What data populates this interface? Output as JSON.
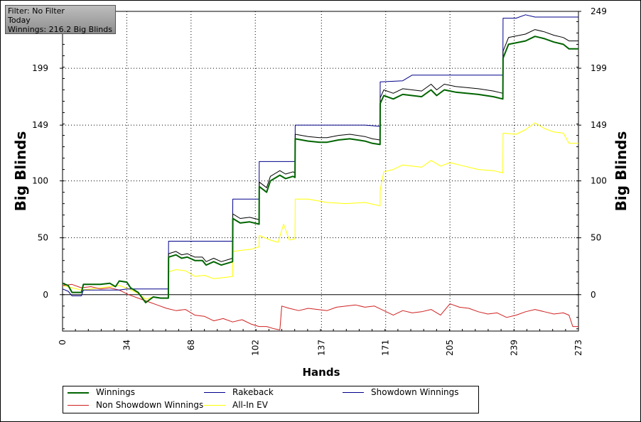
{
  "info_box": {
    "lines": [
      "Filter: No Filter",
      "Today",
      "Winnings: 216.2 Big Blinds"
    ]
  },
  "colors": {
    "winnings": "#006400",
    "rakeback": "#000000",
    "showdown": "#00008b",
    "non_showdown": "#d02020",
    "allin_ev": "#ffff00"
  },
  "chart_data": {
    "type": "line",
    "xlabel": "Hands",
    "ylabel": "Big Blinds",
    "ylabel_right": "Big Blinds",
    "xlim": [
      0,
      273
    ],
    "ylim": [
      -32,
      249
    ],
    "x_ticks": [
      0,
      34,
      68,
      102,
      137,
      171,
      205,
      239,
      273
    ],
    "y_ticks": [
      0,
      50,
      100,
      149,
      199,
      249
    ],
    "grid": true,
    "legend_position": "bottom",
    "series": [
      {
        "name": "Winnings",
        "color_key": "winnings",
        "points": [
          [
            0,
            10
          ],
          [
            3,
            8
          ],
          [
            5,
            2
          ],
          [
            10,
            2
          ],
          [
            11,
            9
          ],
          [
            20,
            9
          ],
          [
            25,
            10
          ],
          [
            28,
            7
          ],
          [
            30,
            12
          ],
          [
            34,
            11
          ],
          [
            36,
            6
          ],
          [
            40,
            2
          ],
          [
            44,
            -7
          ],
          [
            48,
            -2
          ],
          [
            52,
            -3
          ],
          [
            56,
            -3
          ],
          [
            56.1,
            33
          ],
          [
            60,
            35
          ],
          [
            63,
            32
          ],
          [
            66,
            33
          ],
          [
            70,
            30
          ],
          [
            74,
            30
          ],
          [
            76,
            26
          ],
          [
            80,
            29
          ],
          [
            84,
            26
          ],
          [
            88,
            28
          ],
          [
            90,
            29
          ],
          [
            90.1,
            67
          ],
          [
            94,
            63
          ],
          [
            99,
            64
          ],
          [
            104,
            62
          ],
          [
            104.1,
            95
          ],
          [
            108,
            90
          ],
          [
            110,
            100
          ],
          [
            115,
            105
          ],
          [
            118,
            102
          ],
          [
            122,
            104
          ],
          [
            123,
            103
          ],
          [
            123.1,
            137
          ],
          [
            130,
            135
          ],
          [
            136,
            134
          ],
          [
            140,
            134
          ],
          [
            146,
            136
          ],
          [
            152,
            137
          ],
          [
            160,
            135
          ],
          [
            164,
            133
          ],
          [
            168,
            132
          ],
          [
            168.1,
            168
          ],
          [
            170,
            175
          ],
          [
            175,
            172
          ],
          [
            180,
            176
          ],
          [
            190,
            174
          ],
          [
            195,
            180
          ],
          [
            198,
            175
          ],
          [
            202,
            180
          ],
          [
            208,
            178
          ],
          [
            220,
            176
          ],
          [
            228,
            174
          ],
          [
            233,
            172
          ],
          [
            233.1,
            208
          ],
          [
            236,
            220
          ],
          [
            245,
            223
          ],
          [
            250,
            227
          ],
          [
            255,
            225
          ],
          [
            260,
            222
          ],
          [
            265,
            220
          ],
          [
            268,
            216
          ],
          [
            273,
            216
          ]
        ]
      },
      {
        "name": "Rakeback",
        "color_key": "rakeback",
        "points": [
          [
            0,
            10
          ],
          [
            3,
            8
          ],
          [
            5,
            2
          ],
          [
            10,
            2
          ],
          [
            11,
            9
          ],
          [
            20,
            9
          ],
          [
            25,
            10
          ],
          [
            28,
            7
          ],
          [
            30,
            12
          ],
          [
            34,
            11
          ],
          [
            36,
            6
          ],
          [
            40,
            2
          ],
          [
            44,
            -7
          ],
          [
            48,
            -2
          ],
          [
            52,
            -3
          ],
          [
            56,
            -3
          ],
          [
            56.1,
            36
          ],
          [
            60,
            38
          ],
          [
            63,
            35
          ],
          [
            66,
            36
          ],
          [
            70,
            33
          ],
          [
            74,
            33
          ],
          [
            76,
            29
          ],
          [
            80,
            32
          ],
          [
            84,
            29
          ],
          [
            88,
            31
          ],
          [
            90,
            32
          ],
          [
            90.1,
            71
          ],
          [
            94,
            67
          ],
          [
            99,
            68
          ],
          [
            104,
            66
          ],
          [
            104.1,
            99
          ],
          [
            108,
            94
          ],
          [
            110,
            104
          ],
          [
            115,
            109
          ],
          [
            118,
            106
          ],
          [
            122,
            108
          ],
          [
            123,
            107
          ],
          [
            123.1,
            141
          ],
          [
            130,
            139
          ],
          [
            136,
            138
          ],
          [
            140,
            138
          ],
          [
            146,
            140
          ],
          [
            152,
            141
          ],
          [
            160,
            139
          ],
          [
            164,
            137
          ],
          [
            168,
            136
          ],
          [
            168.1,
            173
          ],
          [
            170,
            180
          ],
          [
            175,
            177
          ],
          [
            180,
            181
          ],
          [
            190,
            179
          ],
          [
            195,
            185
          ],
          [
            198,
            180
          ],
          [
            202,
            185
          ],
          [
            208,
            183
          ],
          [
            220,
            181
          ],
          [
            228,
            179
          ],
          [
            233,
            177
          ],
          [
            233.1,
            214
          ],
          [
            236,
            226
          ],
          [
            245,
            229
          ],
          [
            250,
            233
          ],
          [
            255,
            231
          ],
          [
            260,
            228
          ],
          [
            265,
            226
          ],
          [
            268,
            223
          ],
          [
            273,
            223
          ]
        ]
      },
      {
        "name": "Showdown Winnings",
        "color_key": "showdown",
        "points": [
          [
            0,
            5
          ],
          [
            3,
            3
          ],
          [
            5,
            -1
          ],
          [
            10,
            -1
          ],
          [
            11,
            4
          ],
          [
            20,
            4
          ],
          [
            30,
            4
          ],
          [
            34,
            5
          ],
          [
            56,
            5
          ],
          [
            56.1,
            47
          ],
          [
            90,
            47
          ],
          [
            90.1,
            84
          ],
          [
            104,
            84
          ],
          [
            104.1,
            117
          ],
          [
            123,
            117
          ],
          [
            123.1,
            149
          ],
          [
            160,
            149
          ],
          [
            168,
            148
          ],
          [
            168.1,
            187
          ],
          [
            180,
            188
          ],
          [
            185,
            193
          ],
          [
            233,
            193
          ],
          [
            233.1,
            243
          ],
          [
            240,
            243
          ],
          [
            245,
            246
          ],
          [
            250,
            244
          ],
          [
            273,
            244
          ]
        ]
      },
      {
        "name": "Non Showdown Winnings",
        "color_key": "non_showdown",
        "points": [
          [
            0,
            8
          ],
          [
            5,
            9
          ],
          [
            10,
            6
          ],
          [
            15,
            7
          ],
          [
            20,
            5
          ],
          [
            25,
            6
          ],
          [
            30,
            4
          ],
          [
            35,
            0
          ],
          [
            40,
            -3
          ],
          [
            45,
            -6
          ],
          [
            50,
            -9
          ],
          [
            55,
            -12
          ],
          [
            60,
            -14
          ],
          [
            65,
            -13
          ],
          [
            70,
            -18
          ],
          [
            75,
            -19
          ],
          [
            80,
            -23
          ],
          [
            85,
            -21
          ],
          [
            90,
            -24
          ],
          [
            95,
            -22
          ],
          [
            100,
            -26
          ],
          [
            104,
            -28
          ],
          [
            108,
            -28
          ],
          [
            112,
            -30
          ],
          [
            115,
            -31
          ],
          [
            116,
            -10
          ],
          [
            120,
            -12
          ],
          [
            125,
            -14
          ],
          [
            130,
            -12
          ],
          [
            135,
            -13
          ],
          [
            140,
            -14
          ],
          [
            145,
            -11
          ],
          [
            155,
            -9
          ],
          [
            160,
            -11
          ],
          [
            165,
            -10
          ],
          [
            170,
            -14
          ],
          [
            175,
            -18
          ],
          [
            180,
            -14
          ],
          [
            185,
            -16
          ],
          [
            190,
            -15
          ],
          [
            195,
            -13
          ],
          [
            200,
            -18
          ],
          [
            205,
            -8
          ],
          [
            210,
            -11
          ],
          [
            215,
            -12
          ],
          [
            220,
            -15
          ],
          [
            225,
            -17
          ],
          [
            230,
            -16
          ],
          [
            235,
            -20
          ],
          [
            240,
            -18
          ],
          [
            245,
            -15
          ],
          [
            250,
            -13
          ],
          [
            255,
            -15
          ],
          [
            260,
            -17
          ],
          [
            265,
            -16
          ],
          [
            268,
            -18
          ],
          [
            270,
            -28
          ],
          [
            273,
            -28
          ]
        ]
      },
      {
        "name": "All-In EV",
        "color_key": "allin_ev",
        "points": [
          [
            0,
            8
          ],
          [
            5,
            6
          ],
          [
            10,
            4
          ],
          [
            15,
            5
          ],
          [
            20,
            6
          ],
          [
            25,
            7
          ],
          [
            30,
            8
          ],
          [
            35,
            5
          ],
          [
            40,
            1
          ],
          [
            44,
            -4
          ],
          [
            48,
            -2
          ],
          [
            52,
            -3
          ],
          [
            56,
            -3
          ],
          [
            56.1,
            20
          ],
          [
            60,
            22
          ],
          [
            65,
            21
          ],
          [
            70,
            16
          ],
          [
            75,
            17
          ],
          [
            80,
            14
          ],
          [
            85,
            15
          ],
          [
            90,
            16
          ],
          [
            90.1,
            38
          ],
          [
            95,
            39
          ],
          [
            100,
            40
          ],
          [
            104,
            42
          ],
          [
            104.1,
            52
          ],
          [
            110,
            48
          ],
          [
            114,
            46
          ],
          [
            117,
            62
          ],
          [
            120,
            48
          ],
          [
            123,
            49
          ],
          [
            123.1,
            84
          ],
          [
            130,
            84
          ],
          [
            140,
            81
          ],
          [
            150,
            80
          ],
          [
            160,
            81
          ],
          [
            168,
            78
          ],
          [
            168.1,
            92
          ],
          [
            170,
            108
          ],
          [
            175,
            110
          ],
          [
            180,
            114
          ],
          [
            190,
            112
          ],
          [
            195,
            118
          ],
          [
            200,
            113
          ],
          [
            205,
            116
          ],
          [
            210,
            114
          ],
          [
            220,
            110
          ],
          [
            228,
            109
          ],
          [
            233,
            107
          ],
          [
            233.1,
            142
          ],
          [
            240,
            141
          ],
          [
            245,
            145
          ],
          [
            250,
            151
          ],
          [
            255,
            146
          ],
          [
            260,
            143
          ],
          [
            265,
            142
          ],
          [
            268,
            133
          ],
          [
            273,
            133
          ]
        ]
      }
    ]
  }
}
